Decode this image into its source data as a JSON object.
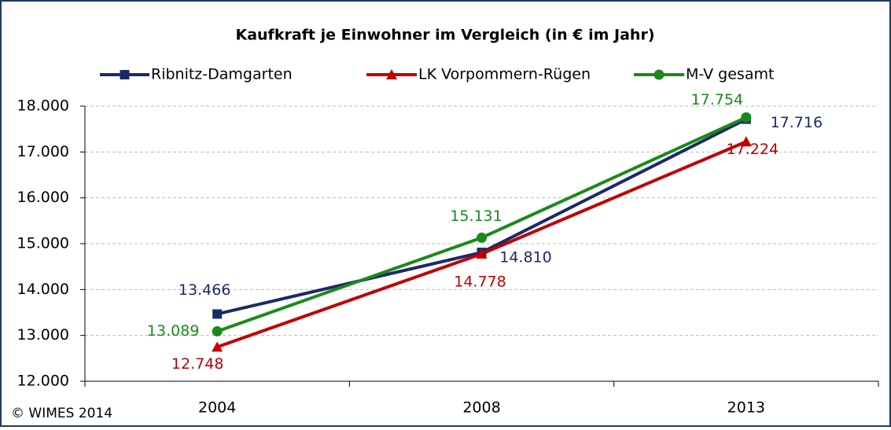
{
  "chart_data": {
    "type": "line",
    "title": "Kaufkraft je Einwohner im Vergleich (in € im Jahr)",
    "footer": "© WIMES 2014",
    "categories": [
      "2004",
      "2008",
      "2013"
    ],
    "series": [
      {
        "name": "Ribnitz-Damgarten",
        "color": "#1b2a66",
        "marker": "square",
        "values": [
          13466,
          14810,
          17716
        ],
        "value_labels": [
          "13.466",
          "14.810",
          "17.716"
        ]
      },
      {
        "name": "LK Vorpommern-Rügen",
        "color": "#c00000",
        "marker": "triangle",
        "values": [
          12748,
          14778,
          17224
        ],
        "value_labels": [
          "12.748",
          "14.778",
          "17.224"
        ]
      },
      {
        "name": "M-V gesamt",
        "color": "#1a8a1a",
        "marker": "circle",
        "values": [
          13089,
          15131,
          17754
        ],
        "value_labels": [
          "13.089",
          "15.131",
          "17.754"
        ]
      }
    ],
    "ylim": [
      12000,
      18000
    ],
    "yticks": [
      {
        "value": 12000,
        "label": "12.000"
      },
      {
        "value": 13000,
        "label": "13.000"
      },
      {
        "value": 14000,
        "label": "14.000"
      },
      {
        "value": 15000,
        "label": "15.000"
      },
      {
        "value": 16000,
        "label": "16.000"
      },
      {
        "value": 17000,
        "label": "17.000"
      },
      {
        "value": 18000,
        "label": "18.000"
      }
    ],
    "grid": true
  }
}
